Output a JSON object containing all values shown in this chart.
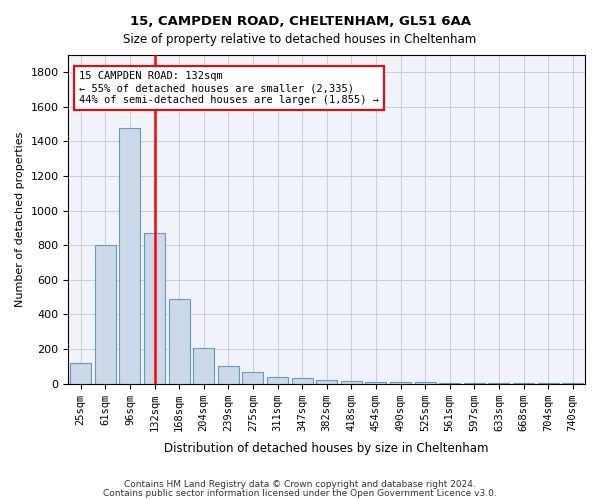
{
  "title1": "15, CAMPDEN ROAD, CHELTENHAM, GL51 6AA",
  "title2": "Size of property relative to detached houses in Cheltenham",
  "xlabel": "Distribution of detached houses by size in Cheltenham",
  "ylabel": "Number of detached properties",
  "categories": [
    "25sqm",
    "61sqm",
    "96sqm",
    "132sqm",
    "168sqm",
    "204sqm",
    "239sqm",
    "275sqm",
    "311sqm",
    "347sqm",
    "382sqm",
    "418sqm",
    "454sqm",
    "490sqm",
    "525sqm",
    "561sqm",
    "597sqm",
    "633sqm",
    "668sqm",
    "704sqm",
    "740sqm"
  ],
  "values": [
    120,
    800,
    1480,
    870,
    490,
    205,
    100,
    65,
    40,
    30,
    20,
    15,
    10,
    10,
    10,
    5,
    5,
    5,
    5,
    5,
    5
  ],
  "bar_color": "#ccd9e8",
  "bar_edge_color": "#6699bb",
  "vline_x_index": 3,
  "vline_color": "red",
  "ylim": [
    0,
    1900
  ],
  "yticks": [
    0,
    200,
    400,
    600,
    800,
    1000,
    1200,
    1400,
    1600,
    1800
  ],
  "annotation_text": "15 CAMPDEN ROAD: 132sqm\n← 55% of detached houses are smaller (2,335)\n44% of semi-detached houses are larger (1,855) →",
  "annotation_box_color": "white",
  "annotation_box_edge": "red",
  "footer1": "Contains HM Land Registry data © Crown copyright and database right 2024.",
  "footer2": "Contains public sector information licensed under the Open Government Licence v3.0.",
  "grid_color": "#cccccc",
  "background_color": "#f0f4fa"
}
